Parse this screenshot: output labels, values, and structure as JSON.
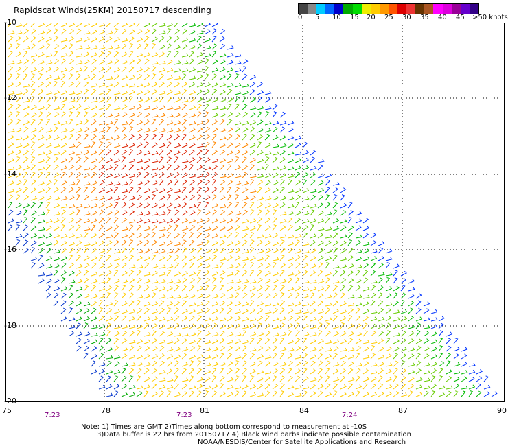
{
  "header": {
    "title": "Rapidscat Winds(25KM) 20150717 descending"
  },
  "scale": {
    "colors": [
      "#444444",
      "#888888",
      "#00ccff",
      "#0066ff",
      "#0000cc",
      "#00aa00",
      "#00dd00",
      "#eeee00",
      "#ffcc00",
      "#ff9900",
      "#ff5500",
      "#dd0000",
      "#ee3333",
      "#663300",
      "#aa5522",
      "#ff00ff",
      "#dd00dd",
      "#990099",
      "#6600cc",
      "#330088"
    ],
    "labels": [
      "0",
      "5",
      "10",
      "15",
      "20",
      "25",
      "30",
      "35",
      "40",
      "45",
      ">50 knots"
    ]
  },
  "axes": {
    "y_labels": [
      "-10",
      "-12",
      "-14",
      "-16",
      "-18",
      "-20"
    ],
    "x_labels": [
      "75",
      "78",
      "81",
      "84",
      "87",
      "90"
    ],
    "times": [
      "7:23",
      "7:23",
      "7:24"
    ]
  },
  "notes": {
    "line1": "Note: 1) Times are GMT 2)Times along bottom correspond to measurement at -10S",
    "line2": "3)Data buffer is 22 hrs from 20150717 4) Black wind barbs indicate possible contamination",
    "line3": "NOAA/NESDIS/Center for Satellite Applications and Research"
  }
}
